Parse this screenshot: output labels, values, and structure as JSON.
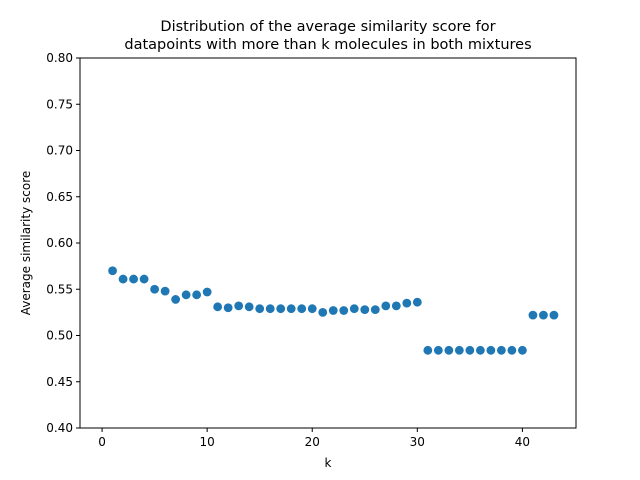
{
  "chart_data": {
    "type": "scatter",
    "title_lines": [
      "Distribution of the average similarity score for",
      "datapoints with more than k molecules in both mixtures"
    ],
    "xlabel": "k",
    "ylabel": "Average similarity score",
    "xlim": [
      -2.1,
      45.1
    ],
    "ylim": [
      0.4,
      0.8
    ],
    "xticks": [
      0,
      10,
      20,
      30,
      40
    ],
    "yticks": [
      0.4,
      0.45,
      0.5,
      0.55,
      0.6,
      0.65,
      0.7,
      0.75,
      0.8
    ],
    "ytick_labels": [
      "0.40",
      "0.45",
      "0.50",
      "0.55",
      "0.60",
      "0.65",
      "0.70",
      "0.75",
      "0.80"
    ],
    "grid": false,
    "legend": "none",
    "marker_color": "#1f77b4",
    "series": [
      {
        "x": [
          1,
          2,
          3,
          4,
          5,
          6,
          7,
          8,
          9,
          10,
          11,
          12,
          13,
          14,
          15,
          16,
          17,
          18,
          19,
          20,
          21,
          22,
          23,
          24,
          25,
          26,
          27,
          28,
          29,
          30,
          31,
          32,
          33,
          34,
          35,
          36,
          37,
          38,
          39,
          40,
          41,
          42,
          43
        ],
        "y": [
          0.57,
          0.561,
          0.561,
          0.561,
          0.55,
          0.548,
          0.539,
          0.544,
          0.544,
          0.547,
          0.531,
          0.53,
          0.532,
          0.531,
          0.529,
          0.529,
          0.529,
          0.529,
          0.529,
          0.529,
          0.525,
          0.527,
          0.527,
          0.529,
          0.528,
          0.528,
          0.532,
          0.532,
          0.535,
          0.536,
          0.484,
          0.484,
          0.484,
          0.484,
          0.484,
          0.484,
          0.484,
          0.484,
          0.484,
          0.484,
          0.522,
          0.522,
          0.522
        ]
      }
    ]
  }
}
